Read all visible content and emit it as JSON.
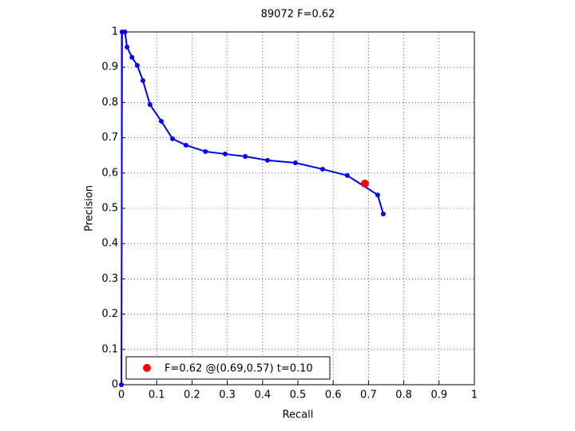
{
  "chart_data": {
    "type": "line",
    "title": "89072 F=0.62",
    "x_label": "Recall",
    "y_label": "Precision",
    "xlim": [
      0,
      1
    ],
    "ylim": [
      0,
      1
    ],
    "xticks": [
      0,
      0.1,
      0.2,
      0.3,
      0.4,
      0.5,
      0.6,
      0.7,
      0.8,
      0.9,
      1
    ],
    "yticks": [
      0,
      0.1,
      0.2,
      0.3,
      0.4,
      0.5,
      0.6,
      0.7,
      0.8,
      0.9,
      1
    ],
    "grid": true,
    "legend": "lower left",
    "series": [
      {
        "color": "#0000ff",
        "marker": "dot",
        "x": [
          0,
          0.002,
          0.01,
          0.016,
          0.03,
          0.045,
          0.061,
          0.081,
          0.113,
          0.145,
          0.183,
          0.238,
          0.294,
          0.351,
          0.414,
          0.493,
          0.57,
          0.64,
          0.726,
          0.742
        ],
        "values": [
          0,
          1,
          1,
          0.957,
          0.928,
          0.905,
          0.862,
          0.794,
          0.747,
          0.697,
          0.679,
          0.661,
          0.654,
          0.647,
          0.636,
          0.629,
          0.611,
          0.593,
          0.538,
          0.484
        ]
      },
      {
        "name": "F=0.62 @(0.69,0.57) t=0.10",
        "color": "#ff0000",
        "marker": "big-dot",
        "x": [
          0.69
        ],
        "values": [
          0.57
        ]
      }
    ]
  }
}
